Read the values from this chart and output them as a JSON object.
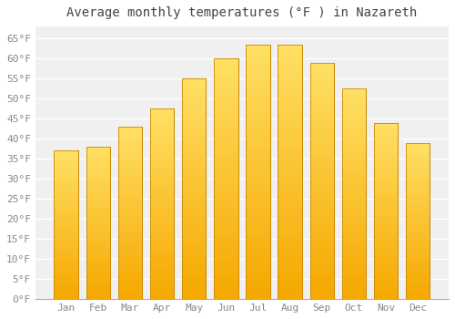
{
  "title": "Average monthly temperatures (°F ) in Nazareth",
  "months": [
    "Jan",
    "Feb",
    "Mar",
    "Apr",
    "May",
    "Jun",
    "Jul",
    "Aug",
    "Sep",
    "Oct",
    "Nov",
    "Dec"
  ],
  "values": [
    37,
    38,
    43,
    47.5,
    55,
    60,
    63.5,
    63.5,
    59,
    52.5,
    44,
    39
  ],
  "bar_color_bottom": "#F5A800",
  "bar_color_top": "#FFD84D",
  "bar_edge_color": "#CC8800",
  "ylim": [
    0,
    68
  ],
  "yticks": [
    0,
    5,
    10,
    15,
    20,
    25,
    30,
    35,
    40,
    45,
    50,
    55,
    60,
    65
  ],
  "ytick_labels": [
    "0°F",
    "5°F",
    "10°F",
    "15°F",
    "20°F",
    "25°F",
    "30°F",
    "35°F",
    "40°F",
    "45°F",
    "50°F",
    "55°F",
    "60°F",
    "65°F"
  ],
  "bg_color": "#ffffff",
  "plot_bg_color": "#f0f0f0",
  "grid_color": "#ffffff",
  "title_fontsize": 10,
  "tick_fontsize": 8,
  "font_family": "monospace",
  "title_color": "#444444",
  "tick_color": "#888888"
}
